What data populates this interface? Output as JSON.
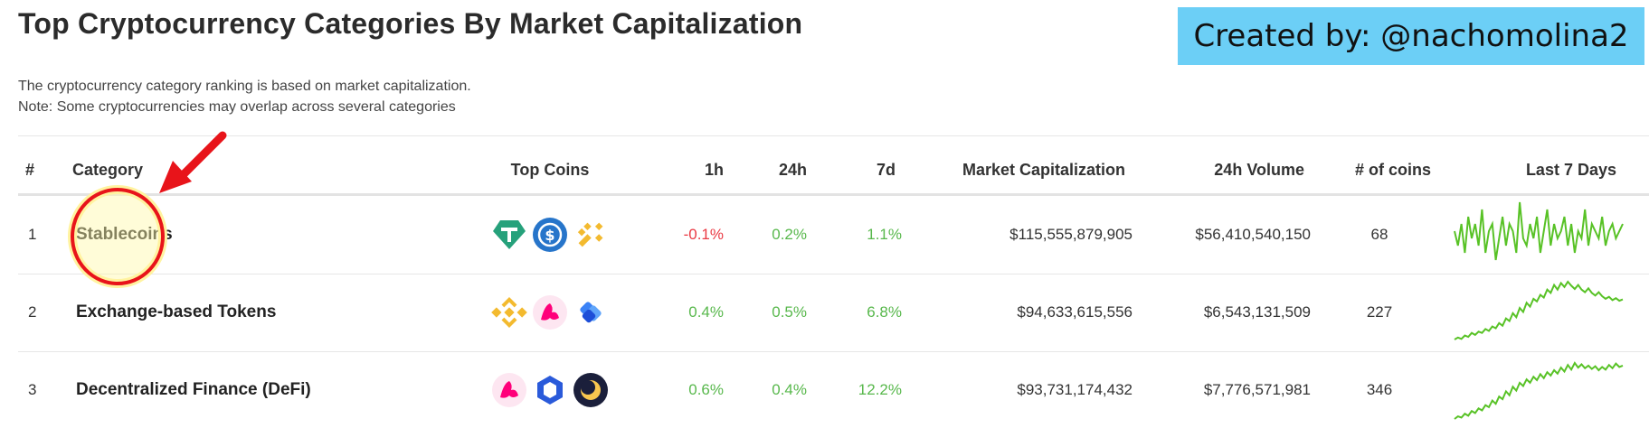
{
  "page": {
    "title": "Top Cryptocurrency Categories By Market Capitalization",
    "credit": "Created by: @nachomolina2",
    "description_line1": "The cryptocurrency category ranking is based on market capitalization.",
    "description_line2": "Note: Some cryptocurrencies may overlap across several categories"
  },
  "colors": {
    "positive": "#58b84c",
    "negative": "#ea3943",
    "credit_bg": "#6ccff6",
    "annotation": "#e8141a",
    "highlight": "#fff9a8",
    "sparkline": "#58c226"
  },
  "table": {
    "headers": [
      "#",
      "Category",
      "Top Coins",
      "1h",
      "24h",
      "7d",
      "Market Capitalization",
      "24h Volume",
      "# of coins",
      "Last 7 Days"
    ],
    "rows": [
      {
        "rank": "1",
        "category": "Stablecoins",
        "coins": [
          "tether-icon",
          "usd-coin-icon",
          "binance-usd-icon"
        ],
        "h1": "-0.1%",
        "h24": "0.2%",
        "d7": "1.1%",
        "market_cap": "$115,555,879,905",
        "volume": "$56,410,540,150",
        "num_coins": "68",
        "trend": [
          5,
          3,
          6,
          2,
          7,
          4,
          6,
          3,
          8,
          2,
          5,
          6,
          1,
          4,
          7,
          3,
          6,
          5,
          2,
          9,
          4,
          3,
          6,
          4,
          7,
          2,
          5,
          8,
          3,
          6,
          4,
          5,
          7,
          3,
          6,
          2,
          5,
          4,
          8,
          3,
          6,
          5,
          4,
          7,
          3,
          5,
          6,
          4,
          5,
          6
        ]
      },
      {
        "rank": "2",
        "category": "Exchange-based Tokens",
        "coins": [
          "binance-coin-icon",
          "uniswap-icon",
          "ftx-token-icon"
        ],
        "h1": "0.4%",
        "h24": "0.5%",
        "d7": "6.8%",
        "market_cap": "$94,633,615,556",
        "volume": "$6,543,131,509",
        "num_coins": "227",
        "trend": [
          1,
          1.3,
          1.1,
          1.6,
          1.4,
          2,
          1.7,
          2.2,
          2,
          2.6,
          2.3,
          3,
          2.7,
          3.5,
          3.1,
          4.2,
          3.8,
          5,
          4.4,
          5.8,
          5.2,
          6.6,
          6,
          7.2,
          6.8,
          7.8,
          7.4,
          8.6,
          8.1,
          9.3,
          8.6,
          9.6,
          9,
          9.8,
          9.2,
          8.7,
          9.3,
          8.6,
          8.2,
          8.8,
          8.1,
          7.7,
          8.2,
          7.6,
          7.2,
          7.5,
          7,
          7.3,
          6.9,
          7.1
        ]
      },
      {
        "rank": "3",
        "category": "Decentralized Finance (DeFi)",
        "coins": [
          "uniswap-icon",
          "chainlink-icon",
          "terra-icon"
        ],
        "h1": "0.6%",
        "h24": "0.4%",
        "d7": "12.2%",
        "market_cap": "$93,731,174,432",
        "volume": "$7,776,571,981",
        "num_coins": "346",
        "trend": [
          1,
          1.4,
          1.2,
          1.8,
          1.5,
          2.2,
          1.9,
          2.6,
          2.3,
          3.1,
          2.8,
          3.8,
          3.3,
          4.4,
          4,
          5.2,
          4.6,
          5.9,
          5.3,
          6.5,
          6,
          7,
          6.5,
          7.4,
          6.9,
          7.8,
          7.2,
          8.1,
          7.6,
          8.4,
          7.9,
          8.8,
          8.2,
          9.2,
          8.5,
          9.5,
          8.8,
          9.3,
          8.7,
          9.1,
          8.6,
          9,
          8.4,
          8.9,
          8.5,
          9.2,
          8.7,
          9.4,
          8.9,
          9.1
        ]
      }
    ]
  }
}
